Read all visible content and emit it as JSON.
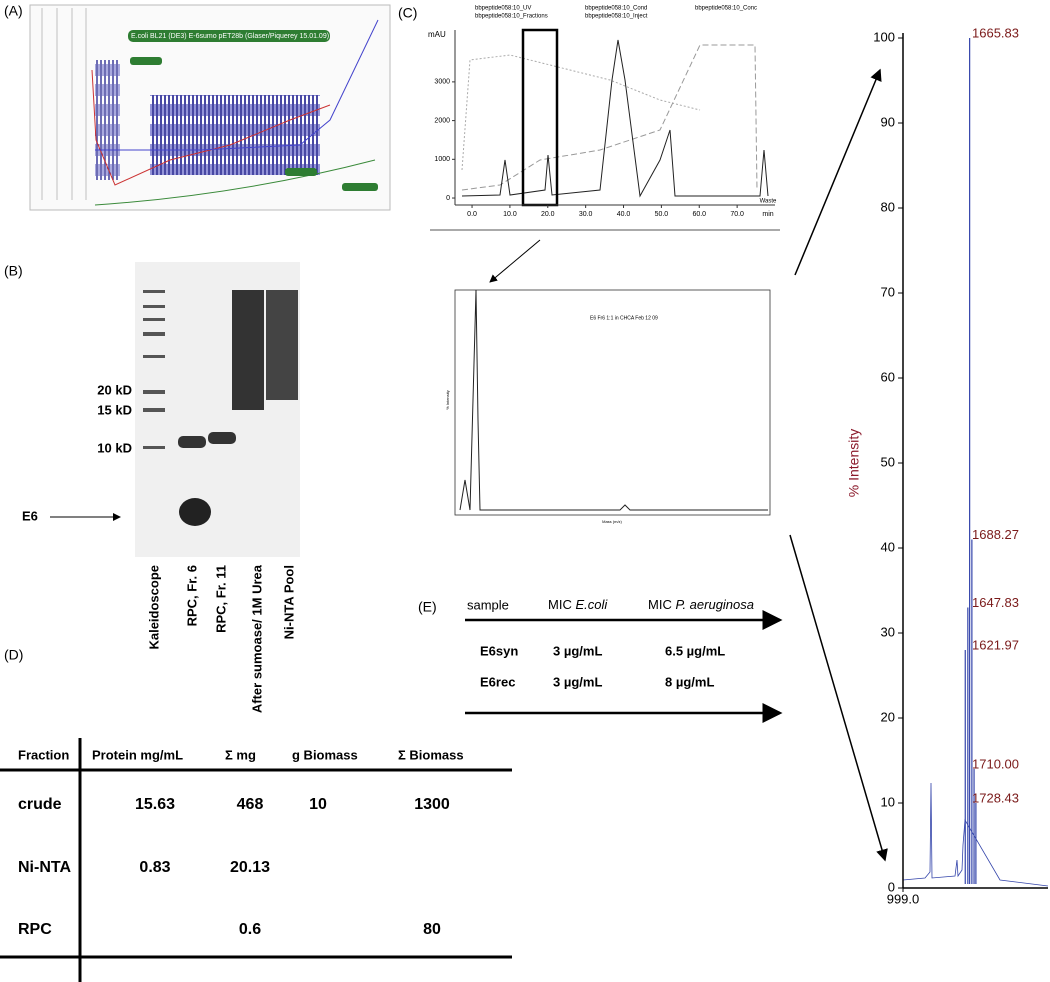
{
  "panels": {
    "a": "(A)",
    "b": "(B)",
    "c": "(C)",
    "d": "(D)",
    "e": "(E)"
  },
  "fermentation": {
    "title": "E.coli BL21 (DE3) E-6sumo pET28b (Glaser/Piquerey 15.01.09)"
  },
  "gel": {
    "markers": [
      "20 kD",
      "15 kD",
      "10 kD"
    ],
    "band": "E6",
    "lanes": [
      "Kaleidoscope",
      "RPC, Fr. 6",
      "RPC, Fr. 11",
      "After sumoase/ 1M Urea",
      "Ni-NTA Pool"
    ]
  },
  "chromatogram": {
    "legend": [
      "bbpeptide058:10_UV",
      "bbpeptide058:10_Cond",
      "bbpeptide058:10_Conc",
      "bbpeptide058:10_Fractions",
      "bbpeptide058:10_Inject"
    ],
    "y_unit": "mAU",
    "x_unit": "min",
    "waste": "Waste",
    "xlim": [
      -4.5,
      80
    ],
    "ylim": [
      -180,
      4340
    ],
    "yticks": [
      0,
      1000,
      2000,
      3000
    ],
    "xticks": [
      {
        "value": 0,
        "label": "0.0"
      },
      {
        "value": 10,
        "label": "10.0"
      },
      {
        "value": 20,
        "label": "20.0"
      },
      {
        "value": 30,
        "label": "30.0"
      },
      {
        "value": 40,
        "label": "40.0"
      },
      {
        "value": 50,
        "label": "50.0"
      },
      {
        "value": 60,
        "label": "60.0"
      },
      {
        "value": 70,
        "label": "70.0"
      }
    ]
  },
  "inset": {
    "title": "E6 Fr6 1:1 in CHCA Feb 12 09",
    "ylabel": "% Intensity",
    "xlabel": "Mass (m/z)"
  },
  "spectrum": {
    "ylabel": "% Intensity",
    "ylim": [
      0,
      100
    ],
    "yticks": [
      0,
      10,
      20,
      30,
      40,
      50,
      60,
      70,
      80,
      90,
      100
    ],
    "xlim": [
      999,
      2450
    ],
    "xtick": {
      "value": 999,
      "label": "999.0"
    },
    "peaks": [
      {
        "mz": 1665.83,
        "label": "1665.83",
        "intensity": 100
      },
      {
        "mz": 1688.27,
        "label": "1688.27",
        "intensity": 41
      },
      {
        "mz": 1647.83,
        "label": "1647.83",
        "intensity": 33
      },
      {
        "mz": 1621.97,
        "label": "1621.97",
        "intensity": 28
      },
      {
        "mz": 1710.0,
        "label": "1710.00",
        "intensity": 14
      },
      {
        "mz": 1728.43,
        "label": "1728.43",
        "intensity": 10
      }
    ]
  },
  "table_e": {
    "header": [
      "sample",
      {
        "prefix": "MIC ",
        "species": "E.coli"
      },
      {
        "prefix": "MIC ",
        "species": "P. aeruginosa"
      }
    ],
    "rows": [
      [
        "E6syn",
        "3 µg/mL",
        "6.5 µg/mL"
      ],
      [
        "E6rec",
        "3 µg/mL",
        "8 µg/mL"
      ]
    ]
  },
  "table_d": {
    "header": [
      "Fraction",
      "Protein mg/mL",
      "Σ mg",
      "g Biomass",
      "Σ Biomass"
    ],
    "rows": [
      [
        "crude",
        "15.63",
        "468",
        "10",
        "1300"
      ],
      [
        "Ni-NTA",
        "0.83",
        "20.13",
        null,
        null
      ],
      [
        "RPC",
        null,
        "0.6",
        null,
        "80"
      ]
    ]
  }
}
